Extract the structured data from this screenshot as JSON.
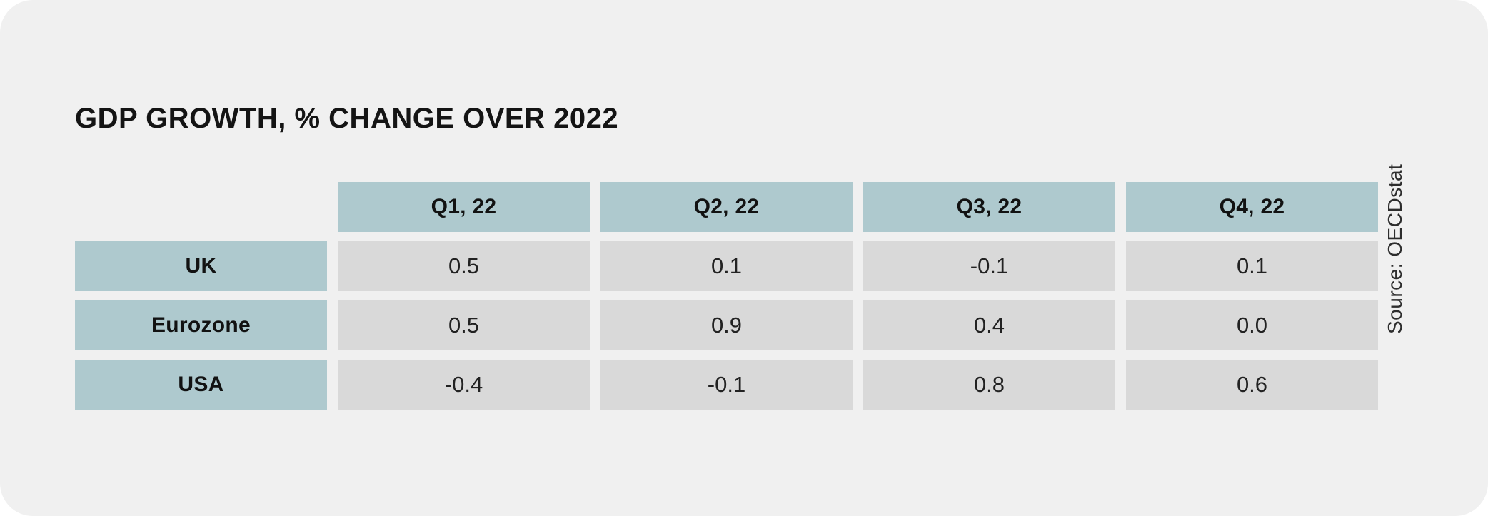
{
  "title": "GDP GROWTH, % CHANGE OVER 2022",
  "source": "Source: OECDstat",
  "colors": {
    "card_background": "#f0f0f0",
    "page_background": "#ffffff",
    "header_bg": "#aec9ce",
    "cell_bg": "#d9d9d9",
    "title_text": "#141414",
    "value_text": "#222222"
  },
  "chart_data": {
    "type": "table",
    "title": "GDP GROWTH, % CHANGE OVER 2022",
    "columns": [
      "Q1, 22",
      "Q2, 22",
      "Q3, 22",
      "Q4, 22"
    ],
    "rows": [
      {
        "label": "UK",
        "values": [
          "0.5",
          "0.1",
          "-0.1",
          "0.1"
        ]
      },
      {
        "label": "Eurozone",
        "values": [
          "0.5",
          "0.9",
          "0.4",
          "0.0"
        ]
      },
      {
        "label": "USA",
        "values": [
          "-0.4",
          "-0.1",
          "0.8",
          "0.6"
        ]
      }
    ],
    "source": "Source: OECDstat",
    "layout": {
      "legend": "none",
      "grid": "off",
      "row_label_position": "left",
      "source_position": "right-rotated"
    }
  }
}
